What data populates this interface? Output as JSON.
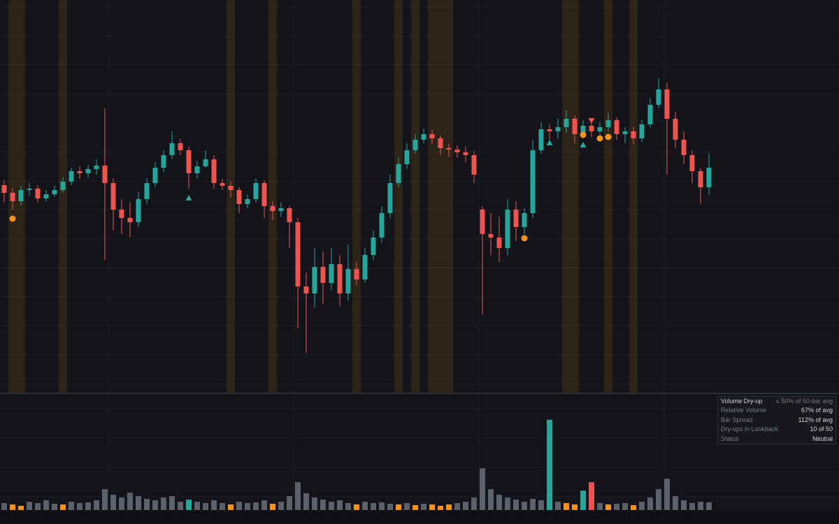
{
  "chart_data": {
    "type": "candlestick",
    "ylim": [
      100,
      156
    ],
    "up_color": "#26a69a",
    "down_color": "#ef5350",
    "open": [
      129.5,
      128.4,
      127.2,
      128.8,
      129.0,
      127.6,
      128.2,
      128.8,
      130.0,
      131.5,
      131.2,
      131.8,
      132.3,
      129.8,
      126.0,
      124.8,
      124.2,
      127.5,
      129.8,
      132.0,
      133.8,
      135.5,
      134.5,
      131.2,
      132.2,
      133.2,
      129.8,
      129.4,
      128.8,
      126.8,
      127.5,
      129.8,
      126.5,
      125.8,
      126.2,
      124.2,
      115.0,
      114.0,
      117.8,
      115.5,
      118.2,
      114.0,
      117.5,
      116.0,
      119.5,
      122.0,
      125.5,
      129.8,
      132.5,
      134.5,
      136.0,
      136.8,
      136.2,
      134.8,
      134.6,
      134.2,
      133.8,
      126.0,
      122.5,
      122.0,
      120.5,
      126.0,
      123.5,
      125.5,
      134.5,
      137.5,
      137.2,
      137.8,
      139.0,
      136.8,
      138.0,
      137.2,
      137.8,
      138.8,
      136.8,
      137.2,
      136.2,
      138.2,
      141.0,
      143.2,
      139.0,
      136.0,
      133.8,
      131.5,
      129.2
    ],
    "high": [
      130.2,
      129.0,
      129.4,
      129.8,
      129.5,
      128.8,
      129.4,
      130.6,
      132.0,
      132.2,
      132.4,
      133.2,
      140.5,
      130.5,
      127.5,
      127.0,
      128.5,
      130.5,
      132.8,
      134.5,
      137.2,
      136.2,
      135.0,
      133.0,
      134.5,
      133.8,
      130.4,
      130.0,
      129.2,
      128.2,
      130.5,
      130.2,
      127.2,
      127.0,
      126.5,
      124.8,
      117.0,
      120.5,
      120.0,
      120.5,
      119.5,
      121.0,
      118.5,
      120.5,
      123.0,
      126.5,
      131.0,
      133.5,
      135.5,
      136.8,
      137.6,
      137.4,
      136.6,
      135.5,
      135.2,
      135.0,
      134.4,
      126.5,
      125.5,
      125.0,
      127.5,
      127.2,
      126.2,
      136.0,
      138.5,
      138.2,
      139.0,
      140.2,
      139.5,
      138.8,
      138.5,
      138.5,
      139.8,
      139.2,
      137.8,
      137.8,
      138.8,
      142.0,
      144.8,
      144.2,
      140.0,
      137.2,
      134.5,
      132.0,
      134.0
    ],
    "low": [
      127.0,
      126.0,
      126.6,
      128.0,
      127.0,
      127.2,
      127.8,
      128.4,
      129.5,
      130.4,
      130.6,
      131.0,
      118.8,
      123.0,
      122.5,
      122.0,
      123.5,
      126.8,
      129.2,
      131.4,
      133.2,
      133.8,
      129.0,
      130.4,
      132.0,
      129.0,
      128.8,
      127.8,
      125.5,
      126.2,
      127.0,
      124.8,
      124.5,
      125.0,
      120.5,
      109.0,
      105.5,
      112.0,
      112.5,
      114.5,
      112.2,
      113.0,
      115.2,
      115.5,
      118.8,
      121.2,
      124.8,
      129.2,
      131.8,
      134.0,
      135.5,
      135.4,
      133.8,
      133.5,
      133.4,
      132.8,
      129.8,
      111.0,
      119.5,
      118.5,
      119.5,
      121.5,
      122.5,
      124.8,
      134.0,
      136.0,
      136.2,
      137.0,
      135.5,
      136.2,
      136.4,
      136.8,
      137.2,
      136.0,
      135.5,
      135.4,
      135.6,
      137.8,
      140.5,
      131.0,
      134.8,
      132.5,
      129.8,
      126.8,
      128.1
    ],
    "close": [
      128.4,
      127.2,
      128.8,
      129.0,
      127.6,
      128.2,
      128.8,
      130.0,
      131.5,
      131.2,
      131.8,
      132.3,
      129.8,
      126.0,
      124.8,
      124.2,
      127.5,
      129.8,
      132.0,
      133.8,
      135.5,
      134.5,
      131.2,
      132.2,
      133.2,
      129.8,
      129.4,
      128.8,
      126.8,
      127.5,
      129.8,
      126.5,
      125.8,
      126.2,
      124.2,
      115.0,
      114.0,
      117.8,
      115.5,
      118.2,
      114.0,
      117.5,
      116.0,
      119.5,
      122.0,
      125.5,
      129.8,
      132.5,
      134.5,
      136.0,
      136.8,
      136.2,
      134.8,
      134.6,
      134.2,
      133.8,
      131.0,
      122.5,
      122.0,
      120.5,
      126.0,
      123.5,
      125.5,
      134.5,
      137.5,
      137.2,
      137.8,
      139.0,
      136.8,
      138.0,
      137.2,
      137.8,
      138.8,
      136.8,
      137.2,
      136.2,
      138.2,
      141.0,
      143.2,
      139.0,
      136.0,
      133.8,
      131.5,
      129.2,
      132.0
    ],
    "volume": [
      10,
      8,
      6,
      12,
      10,
      14,
      9,
      8,
      12,
      10,
      11,
      14,
      30,
      22,
      18,
      25,
      20,
      16,
      14,
      18,
      20,
      12,
      15,
      12,
      10,
      14,
      10,
      8,
      12,
      10,
      11,
      14,
      9,
      12,
      20,
      40,
      24,
      18,
      15,
      12,
      14,
      10,
      8,
      12,
      10,
      11,
      9,
      8,
      10,
      7,
      9,
      8,
      6,
      8,
      10,
      12,
      18,
      60,
      30,
      22,
      18,
      15,
      12,
      16,
      14,
      130,
      12,
      10,
      8,
      28,
      40,
      10,
      8,
      9,
      10,
      7,
      12,
      18,
      30,
      45,
      20,
      14,
      10,
      12,
      11
    ],
    "volume_ylim": [
      0,
      166
    ],
    "volume_colors": [
      "#5d606b",
      "#f7931a",
      "#f7931a",
      "#5d606b",
      "#5d606b",
      "#5d606b",
      "#5d606b",
      "#f7931a",
      "#5d606b",
      "#5d606b",
      "#5d606b",
      "#5d606b",
      "#5d606b",
      "#5d606b",
      "#5d606b",
      "#5d606b",
      "#5d606b",
      "#5d606b",
      "#5d606b",
      "#5d606b",
      "#5d606b",
      "#5d606b",
      "#26a69a",
      "#5d606b",
      "#5d606b",
      "#5d606b",
      "#5d606b",
      "#f7931a",
      "#5d606b",
      "#5d606b",
      "#5d606b",
      "#5d606b",
      "#f7931a",
      "#5d606b",
      "#5d606b",
      "#5d606b",
      "#5d606b",
      "#5d606b",
      "#5d606b",
      "#5d606b",
      "#5d606b",
      "#5d606b",
      "#f7931a",
      "#5d606b",
      "#5d606b",
      "#5d606b",
      "#5d606b",
      "#f7931a",
      "#5d606b",
      "#f7931a",
      "#5d606b",
      "#f7931a",
      "#f7931a",
      "#f7931a",
      "#5d606b",
      "#5d606b",
      "#5d606b",
      "#5d606b",
      "#5d606b",
      "#5d606b",
      "#5d606b",
      "#5d606b",
      "#5d606b",
      "#5d606b",
      "#5d606b",
      "#26a69a",
      "#5d606b",
      "#f7931a",
      "#f7931a",
      "#26a69a",
      "#ef5350",
      "#5d606b",
      "#f7931a",
      "#5d606b",
      "#5d606b",
      "#f7931a",
      "#5d606b",
      "#5d606b",
      "#5d606b",
      "#5d606b",
      "#5d606b",
      "#5d606b",
      "#5d606b",
      "#5d606b",
      "#5d606b"
    ],
    "dryup_color": "#f7931a",
    "markers": [
      {
        "shape": "circle",
        "color": "#f7931a",
        "index": [
          1,
          62,
          69,
          71,
          72
        ],
        "values": [
          124.7,
          121.9,
          136.7,
          136.2,
          136.4
        ]
      },
      {
        "shape": "triangle-up",
        "color": "#26a69a",
        "index": [
          22,
          65,
          69
        ],
        "values": [
          127.7,
          135.6,
          135.3
        ]
      },
      {
        "shape": "triangle-down",
        "color": "#ef5350",
        "index": [
          70
        ],
        "values": [
          138.7
        ]
      }
    ]
  },
  "table": {
    "title": "Volume Dry-up",
    "title_value": "≤ 50% of 50-bar avg",
    "rows": [
      [
        "Relative Volume",
        "67% of avg"
      ],
      [
        "Bar Spread",
        "112% of avg"
      ],
      [
        "Dry-ups in Lookback",
        "10 of 50"
      ],
      [
        "Status",
        "Neutral"
      ]
    ]
  }
}
